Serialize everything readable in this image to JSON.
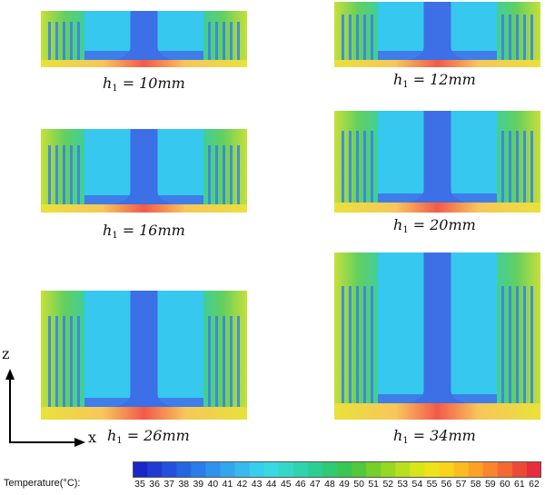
{
  "panels": [
    {
      "symbol": "h",
      "subscript": "1",
      "equals": "=",
      "value": "10mm"
    },
    {
      "symbol": "h",
      "subscript": "1",
      "equals": "=",
      "value": "12mm"
    },
    {
      "symbol": "h",
      "subscript": "1",
      "equals": "=",
      "value": "16mm"
    },
    {
      "symbol": "h",
      "subscript": "1",
      "equals": "=",
      "value": "20mm"
    },
    {
      "symbol": "h",
      "subscript": "1",
      "equals": "=",
      "value": "26mm"
    },
    {
      "symbol": "h",
      "subscript": "1",
      "equals": "=",
      "value": "34mm"
    }
  ],
  "axes": {
    "z": "z",
    "x": "x"
  },
  "colorbar": {
    "title": "Temperature(°C):",
    "ticks": [
      "35",
      "36",
      "37",
      "38",
      "39",
      "40",
      "41",
      "42",
      "43",
      "44",
      "45",
      "46",
      "47",
      "48",
      "49",
      "50",
      "51",
      "52",
      "53",
      "54",
      "55",
      "56",
      "57",
      "58",
      "59",
      "60",
      "61",
      "62"
    ],
    "colors": [
      "#1c25c8",
      "#1f3bd2",
      "#2251dc",
      "#2567e3",
      "#2a7de8",
      "#2f93ec",
      "#33a7ee",
      "#37bbef",
      "#39cdee",
      "#39d9e2",
      "#35d8c8",
      "#2fd4ad",
      "#2ccf92",
      "#2fca74",
      "#38c655",
      "#52c93b",
      "#73d02d",
      "#96d823",
      "#b9df1e",
      "#d8e51b",
      "#eee31a",
      "#f8d41c",
      "#fbbc20",
      "#fba126",
      "#f9852c",
      "#f36833",
      "#ec4a39",
      "#e52e3e"
    ]
  },
  "colors": {
    "inlet": "#3d6fe6",
    "fluid": "#36c8ef",
    "fin_hot": "#6cd05e",
    "base": "#f7d35a",
    "hotspot": "#f25a4a"
  }
}
